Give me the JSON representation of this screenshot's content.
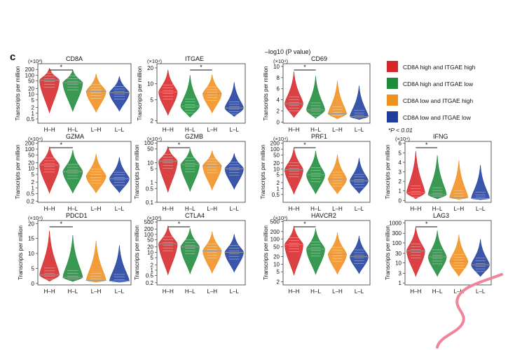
{
  "figure": {
    "panel_label": "c",
    "top_caption": "–log10 (P value)",
    "significance_note": "*P < 0.01",
    "ylabel": "Transcripts per million"
  },
  "legend": {
    "position": "right",
    "items": [
      {
        "label": "CD8A high and ITGAE high",
        "color": "#d62728"
      },
      {
        "label": "CD8A high and ITGAE low",
        "color": "#1e8b3a"
      },
      {
        "label": "CD8A low and ITGAE high",
        "color": "#f0901e"
      },
      {
        "label": "CD8A low and ITGAE low",
        "color": "#1f3f9e"
      }
    ]
  },
  "chart_data": [
    {
      "type": "violin",
      "title": "CD8A",
      "multiplier": "(×10³)",
      "scale": "log",
      "xlabel": "",
      "ylabel": "Transcripts per million",
      "categories": [
        "H–H",
        "H–L",
        "L–H",
        "L–L"
      ],
      "ylim": [
        0.3,
        400
      ],
      "yticks": [
        0.5,
        1,
        2,
        5,
        10,
        20,
        50,
        100,
        200
      ],
      "ytick_labels": [
        "0.5",
        "1",
        "2",
        "5",
        "10",
        "20",
        "50",
        "100",
        "200"
      ],
      "series": [
        {
          "name": "median",
          "values": [
            55,
            40,
            14,
            12
          ]
        }
      ],
      "sig_bracket": [
        "H–H",
        "H–L"
      ],
      "sig_label": "*"
    },
    {
      "type": "violin",
      "title": "ITGAE",
      "multiplier": "(×10⁴)",
      "scale": "log",
      "xlabel": "",
      "ylabel": "Transcripts per million",
      "categories": [
        "H–H",
        "H–L",
        "L–H",
        "L–L"
      ],
      "ylim": [
        1.8,
        24
      ],
      "yticks": [
        2,
        5,
        10,
        20
      ],
      "ytick_labels": [
        "2",
        "5",
        "10",
        "20"
      ],
      "series": [
        {
          "name": "median",
          "values": [
            7,
            3.8,
            6.5,
            3.5
          ]
        }
      ],
      "sig_bracket": [
        "H–L",
        "L–H"
      ],
      "sig_label": "*"
    },
    {
      "type": "violin",
      "title": "CD69",
      "multiplier": "(×10⁴)",
      "scale": "linear",
      "xlabel": "",
      "ylabel": "Transcripts per million",
      "categories": [
        "H–H",
        "H–L",
        "L–H",
        "L–L"
      ],
      "ylim": [
        -0.2,
        10.5
      ],
      "yticks": [
        0,
        2,
        4,
        6,
        8,
        10
      ],
      "ytick_labels": [
        "0",
        "2",
        "4",
        "6",
        "8",
        "10"
      ],
      "series": [
        {
          "name": "median",
          "values": [
            3.3,
            2.2,
            1.5,
            1.0
          ]
        }
      ],
      "sig_bracket": [
        "H–H",
        "H–L"
      ],
      "sig_label": "*"
    },
    {
      "type": "violin",
      "title": "GZMA",
      "multiplier": "(×10⁴)",
      "scale": "log",
      "xlabel": "",
      "ylabel": "Transcripts per million",
      "categories": [
        "H–H",
        "H–L",
        "L–H",
        "L–L"
      ],
      "ylim": [
        0.18,
        250
      ],
      "yticks": [
        0.2,
        0.5,
        1,
        2,
        5,
        10,
        20,
        50,
        100,
        200
      ],
      "ytick_labels": [
        "0.2",
        "0.5",
        "1",
        "2",
        "5",
        "10",
        "20",
        "50",
        "100",
        "200"
      ],
      "series": [
        {
          "name": "median",
          "values": [
            15,
            7,
            4,
            3
          ]
        }
      ],
      "sig_bracket": [
        "H–H",
        "H–L"
      ],
      "sig_label": "*"
    },
    {
      "type": "violin",
      "title": "GZMB",
      "multiplier": "(×10⁴)",
      "scale": "log",
      "xlabel": "",
      "ylabel": "Transcripts per million",
      "categories": [
        "H–H",
        "H–L",
        "L–H",
        "L–L"
      ],
      "ylim": [
        0.1,
        120
      ],
      "yticks": [
        0.1,
        0.5,
        1,
        5,
        10,
        50,
        100
      ],
      "ytick_labels": [
        "0.1",
        "0.5",
        "1",
        "5",
        "10",
        "50",
        "100"
      ],
      "series": [
        {
          "name": "median",
          "values": [
            12,
            8,
            7,
            5
          ]
        }
      ],
      "sig_bracket": [
        "H–H",
        "H–L"
      ],
      "sig_label": "*"
    },
    {
      "type": "violin",
      "title": "PRF1",
      "multiplier": "(×10⁴)",
      "scale": "log",
      "xlabel": "",
      "ylabel": "Transcripts per million",
      "categories": [
        "H–H",
        "H–L",
        "L–H",
        "L–L"
      ],
      "ylim": [
        0.2,
        250
      ],
      "yticks": [
        0.5,
        1,
        2,
        5,
        10,
        20,
        50,
        100,
        200
      ],
      "ytick_labels": [
        "0.5",
        "1",
        "2",
        "5",
        "10",
        "20",
        "50",
        "100",
        "200"
      ],
      "series": [
        {
          "name": "median",
          "values": [
            9,
            5,
            3,
            2.5
          ]
        }
      ],
      "sig_bracket": [
        "H–H",
        "H–L"
      ],
      "sig_label": "*"
    },
    {
      "type": "violin",
      "title": "IFNG",
      "multiplier": "(×10⁴)",
      "scale": "linear",
      "xlabel": "",
      "ylabel": "Transcripts per million",
      "categories": [
        "H–H",
        "H–L",
        "L–H",
        "L–L"
      ],
      "ylim": [
        -0.2,
        6.2
      ],
      "yticks": [
        0,
        1,
        2,
        3,
        4,
        5,
        6
      ],
      "ytick_labels": [
        "0",
        "1",
        "2",
        "3",
        "4",
        "5",
        "6"
      ],
      "series": [
        {
          "name": "median",
          "values": [
            0.8,
            0.6,
            0.3,
            0.2
          ]
        }
      ],
      "sig_bracket": [
        "H–H",
        "H–L"
      ],
      "sig_label": "*"
    },
    {
      "type": "violin",
      "title": "PDCD1",
      "multiplier": "(×10⁴)",
      "scale": "linear",
      "xlabel": "",
      "ylabel": "Transcripts per million",
      "categories": [
        "H–H",
        "H–L",
        "L–H",
        "L–L"
      ],
      "ylim": [
        -0.5,
        21
      ],
      "yticks": [
        0,
        5,
        10,
        15,
        20
      ],
      "ytick_labels": [
        "0",
        "5",
        "10",
        "15",
        "20"
      ],
      "series": [
        {
          "name": "median",
          "values": [
            2.8,
            2.0,
            1.0,
            0.8
          ]
        }
      ],
      "sig_bracket": [
        "H–H",
        "H–L"
      ],
      "sig_label": "*"
    },
    {
      "type": "violin",
      "title": "CTLA4",
      "multiplier": "(×10³)",
      "scale": "log",
      "xlabel": "",
      "ylabel": "Transcripts per million",
      "categories": [
        "H–H",
        "H–L",
        "L–H",
        "L–L"
      ],
      "ylim": [
        0.15,
        600
      ],
      "yticks": [
        0.2,
        0.5,
        1,
        2,
        5,
        10,
        20,
        50,
        100,
        200,
        500
      ],
      "ytick_labels": [
        "0.2",
        "0.5",
        "1",
        "2",
        "5",
        "10",
        "20",
        "50",
        "100",
        "200",
        "500"
      ],
      "series": [
        {
          "name": "median",
          "values": [
            30,
            20,
            12,
            10
          ]
        }
      ],
      "sig_bracket": [
        "H–H",
        "H–L"
      ],
      "sig_label": "*"
    },
    {
      "type": "violin",
      "title": "HAVCR2",
      "multiplier": "(×10³)",
      "scale": "log",
      "xlabel": "",
      "ylabel": "Transcripts per million",
      "categories": [
        "H–H",
        "H–L",
        "L–H",
        "L–L"
      ],
      "ylim": [
        1.5,
        550
      ],
      "yticks": [
        2,
        5,
        10,
        20,
        50,
        100,
        200,
        500
      ],
      "ytick_labels": [
        "2",
        "5",
        "10",
        "20",
        "50",
        "100",
        "200",
        "500"
      ],
      "series": [
        {
          "name": "median",
          "values": [
            60,
            40,
            25,
            20
          ]
        }
      ],
      "sig_bracket": [
        "H–H",
        "H–L"
      ],
      "sig_label": "*"
    },
    {
      "type": "violin",
      "title": "LAG3",
      "multiplier": "",
      "scale": "log",
      "xlabel": "",
      "ylabel": "Transcripts per million",
      "categories": [
        "H–H",
        "H–L",
        "L–H",
        "L–L"
      ],
      "ylim": [
        0.8,
        1300
      ],
      "yticks": [
        1,
        3,
        10,
        30,
        100,
        300,
        1000
      ],
      "ytick_labels": [
        "1",
        "3",
        "10",
        "30",
        "100",
        "300",
        "1000"
      ],
      "series": [
        {
          "name": "median",
          "values": [
            40,
            20,
            12,
            8
          ]
        }
      ],
      "sig_bracket": [
        "H–H",
        "H–L"
      ],
      "sig_label": "*"
    }
  ]
}
